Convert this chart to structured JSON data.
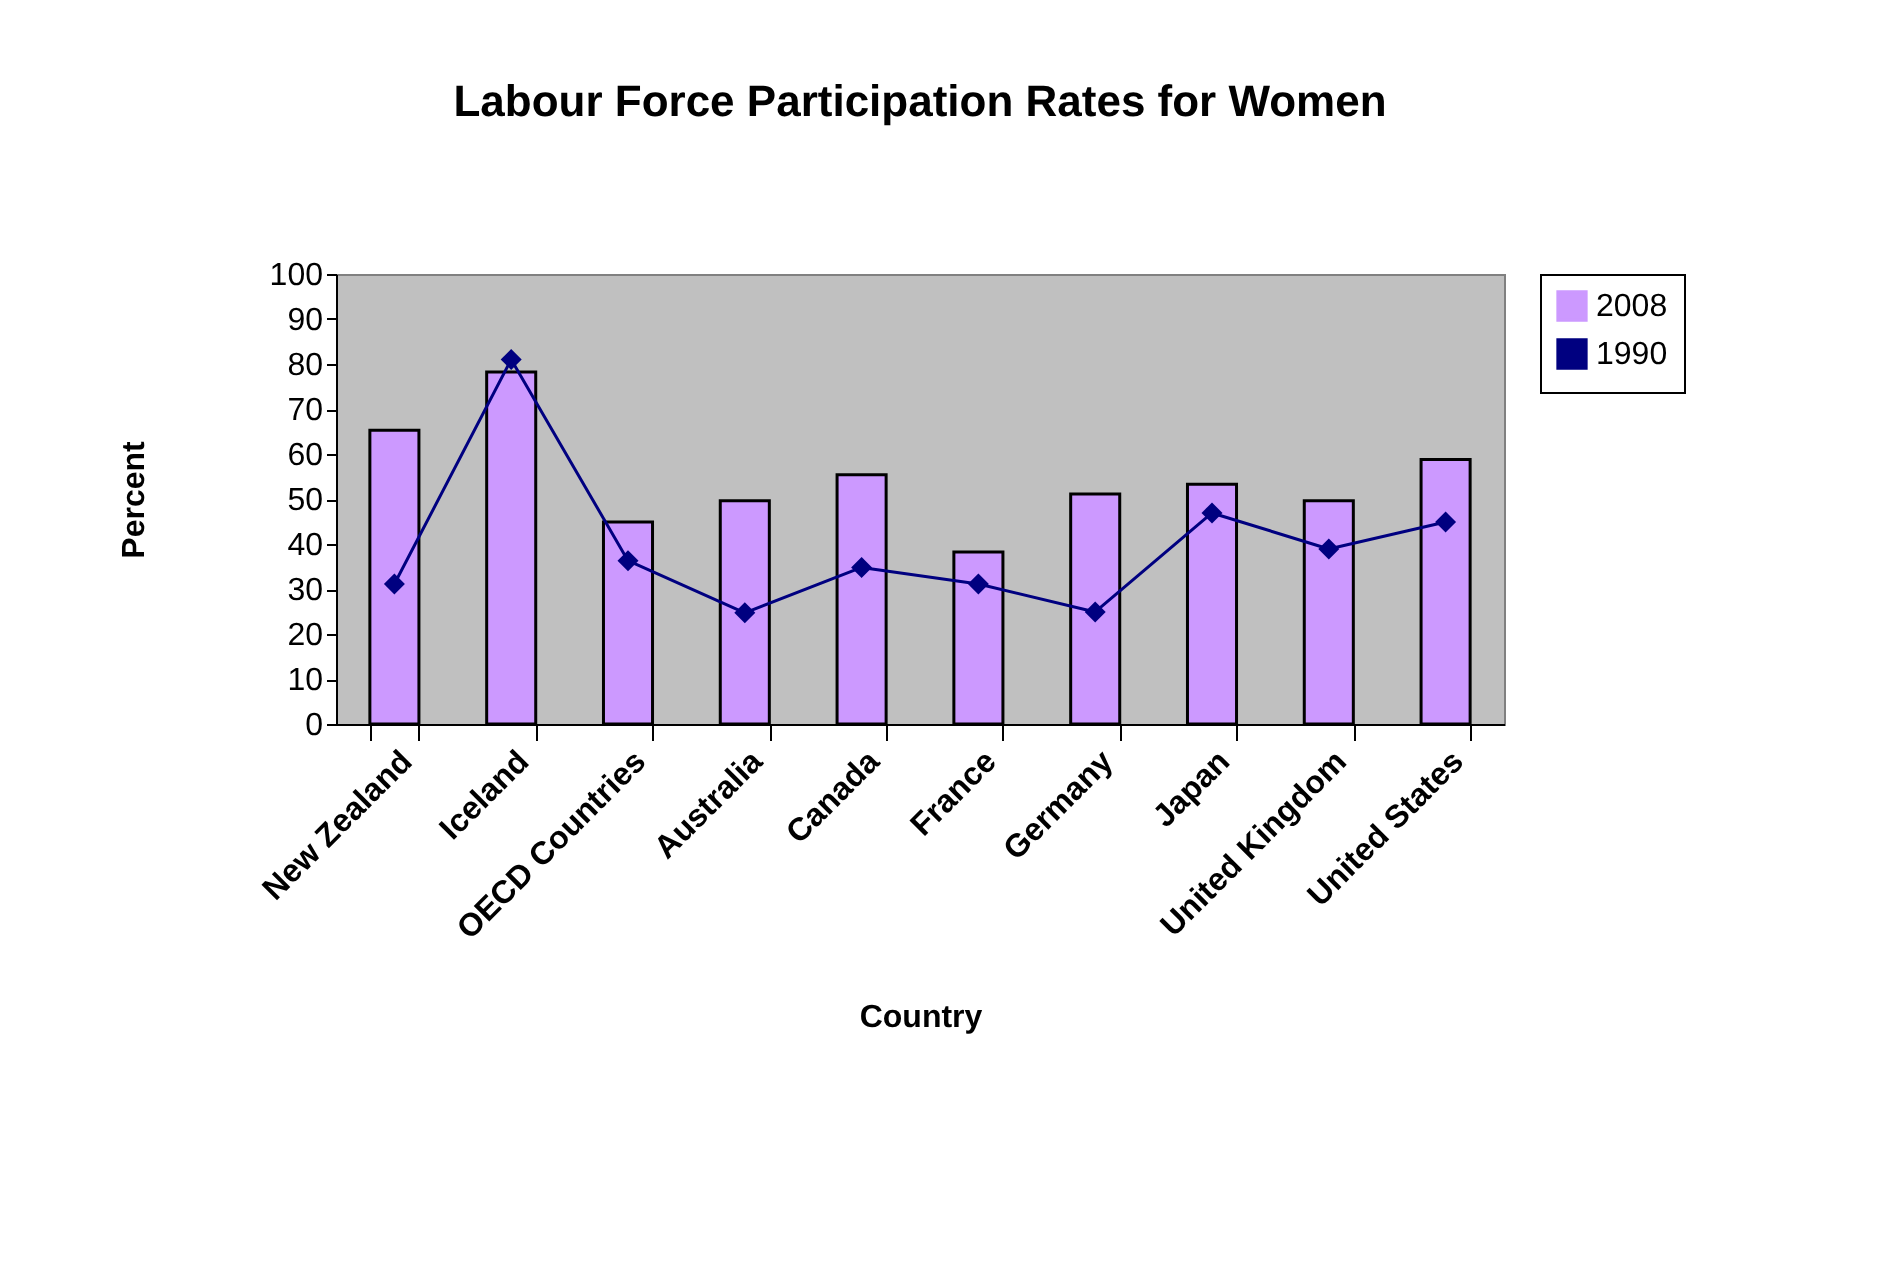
{
  "chart_data": {
    "type": "bar",
    "title": "Labour Force Participation Rates for Women",
    "xlabel": "Country",
    "ylabel": "Percent",
    "categories": [
      "New Zealand",
      "Iceland",
      "OECD Countries",
      "Australia",
      "Canada",
      "France",
      "Germany",
      "Japan",
      "United Kingdom",
      "United States"
    ],
    "series": [
      {
        "name": "2008",
        "color": "#cc99ff",
        "values": [
          65.3,
          78.2,
          44.9,
          49.6,
          55.4,
          38.2,
          51.1,
          53.3,
          49.6,
          58.8
        ]
      },
      {
        "name": "1990",
        "type": "line",
        "color": "#000080",
        "marker": "diamond",
        "values": [
          31.1,
          81.0,
          36.3,
          24.7,
          34.8,
          31.1,
          24.9,
          46.9,
          38.9,
          44.9
        ]
      }
    ],
    "ylim": [
      0,
      100
    ],
    "yticks": [
      0,
      10,
      20,
      30,
      40,
      50,
      60,
      70,
      80,
      90,
      100
    ],
    "legend": "right"
  }
}
